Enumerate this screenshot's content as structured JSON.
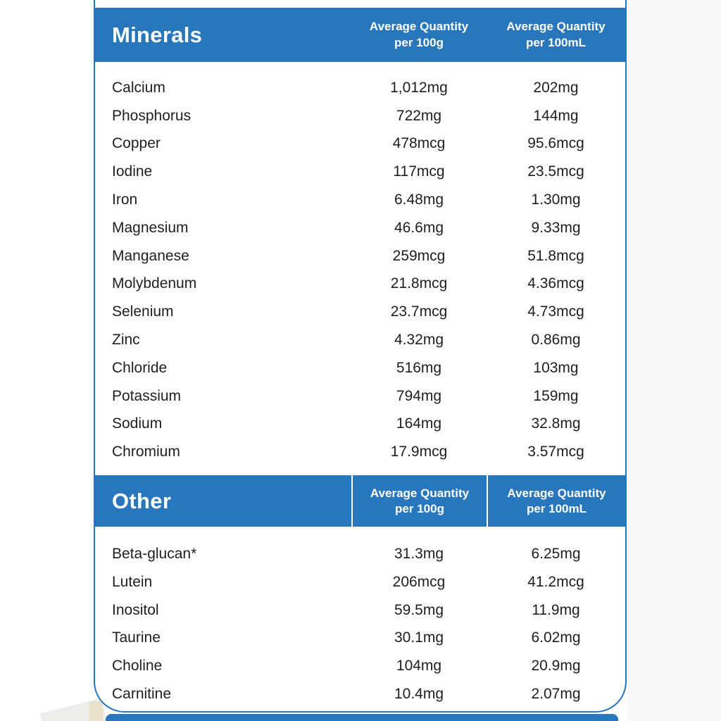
{
  "colors": {
    "accent": "#2877bd",
    "header_text": "#ffffff",
    "row_text": "#1e1e20"
  },
  "sections": [
    {
      "title": "Minerals",
      "column_headers": [
        {
          "line1": "Average Quantity",
          "line2": "per 100g"
        },
        {
          "line1": "Average Quantity",
          "line2": "per 100mL"
        }
      ],
      "rows": [
        {
          "name": "Calcium",
          "per_100g": "1,012mg",
          "per_100ml": "202mg"
        },
        {
          "name": "Phosphorus",
          "per_100g": "722mg",
          "per_100ml": "144mg"
        },
        {
          "name": "Copper",
          "per_100g": "478mcg",
          "per_100ml": "95.6mcg"
        },
        {
          "name": "Iodine",
          "per_100g": "117mcg",
          "per_100ml": "23.5mcg"
        },
        {
          "name": "Iron",
          "per_100g": "6.48mg",
          "per_100ml": "1.30mg"
        },
        {
          "name": "Magnesium",
          "per_100g": "46.6mg",
          "per_100ml": "9.33mg"
        },
        {
          "name": "Manganese",
          "per_100g": "259mcg",
          "per_100ml": "51.8mcg"
        },
        {
          "name": "Molybdenum",
          "per_100g": "21.8mcg",
          "per_100ml": "4.36mcg"
        },
        {
          "name": "Selenium",
          "per_100g": "23.7mcg",
          "per_100ml": "4.73mcg"
        },
        {
          "name": "Zinc",
          "per_100g": "4.32mg",
          "per_100ml": "0.86mg"
        },
        {
          "name": "Chloride",
          "per_100g": "516mg",
          "per_100ml": "103mg"
        },
        {
          "name": "Potassium",
          "per_100g": "794mg",
          "per_100ml": "159mg"
        },
        {
          "name": "Sodium",
          "per_100g": "164mg",
          "per_100ml": "32.8mg"
        },
        {
          "name": "Chromium",
          "per_100g": "17.9mcg",
          "per_100ml": "3.57mcg"
        }
      ]
    },
    {
      "title": "Other",
      "column_headers": [
        {
          "line1": "Average Quantity",
          "line2": "per 100g"
        },
        {
          "line1": "Average Quantity",
          "line2": "per 100mL"
        }
      ],
      "rows": [
        {
          "name": "Beta-glucan*",
          "per_100g": "31.3mg",
          "per_100ml": "6.25mg"
        },
        {
          "name": "Lutein",
          "per_100g": "206mcg",
          "per_100ml": "41.2mcg"
        },
        {
          "name": "Inositol",
          "per_100g": "59.5mg",
          "per_100ml": "11.9mg"
        },
        {
          "name": "Taurine",
          "per_100g": "30.1mg",
          "per_100ml": "6.02mg"
        },
        {
          "name": "Choline",
          "per_100g": "104mg",
          "per_100ml": "20.9mg"
        },
        {
          "name": "Carnitine",
          "per_100g": "10.4mg",
          "per_100ml": "2.07mg"
        }
      ]
    }
  ]
}
